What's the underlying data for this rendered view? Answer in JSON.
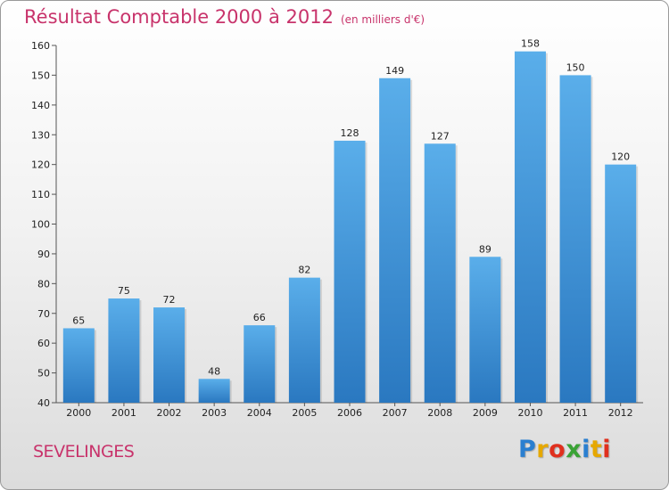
{
  "title": "Résultat Comptable 2000 à 2012",
  "subtitle": "(en milliers d'€)",
  "commune": "SEVELINGES",
  "logo": {
    "letters": [
      {
        "ch": "P",
        "color": "#2a7fd0"
      },
      {
        "ch": "r",
        "color": "#e6a800"
      },
      {
        "ch": "o",
        "color": "#e0301e"
      },
      {
        "ch": "x",
        "color": "#3aa335"
      },
      {
        "ch": "i",
        "color": "#2a7fd0"
      },
      {
        "ch": "t",
        "color": "#e6a800"
      },
      {
        "ch": "i",
        "color": "#e0301e"
      }
    ]
  },
  "colors": {
    "bar_top": "#5aaeea",
    "bar_bottom": "#2a78c0",
    "title": "#c8336b"
  },
  "chart_data": {
    "type": "bar",
    "categories": [
      "2000",
      "2001",
      "2002",
      "2003",
      "2004",
      "2005",
      "2006",
      "2007",
      "2008",
      "2009",
      "2010",
      "2011",
      "2012"
    ],
    "values": [
      65,
      75,
      72,
      48,
      66,
      82,
      128,
      149,
      127,
      89,
      158,
      150,
      120
    ],
    "ylim": [
      40,
      160
    ],
    "yticks": [
      40,
      50,
      60,
      70,
      80,
      90,
      100,
      110,
      120,
      130,
      140,
      150,
      160
    ],
    "grid": false
  }
}
